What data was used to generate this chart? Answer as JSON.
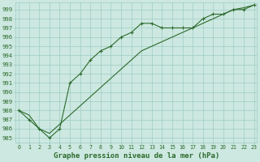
{
  "line1_x": [
    0,
    1,
    2,
    3,
    4,
    5,
    6,
    7,
    8,
    9,
    10,
    11,
    12,
    13,
    14,
    15,
    16,
    17,
    18,
    19,
    20,
    21,
    22,
    23
  ],
  "line1_y": [
    988.0,
    987.0,
    986.0,
    985.0,
    986.0,
    991.0,
    992.0,
    993.5,
    994.5,
    995.0,
    996.0,
    996.5,
    997.5,
    997.5,
    997.0,
    997.0,
    997.0,
    997.0,
    998.0,
    998.5,
    998.5,
    999.0,
    999.0,
    999.5
  ],
  "line2_x": [
    0,
    1,
    2,
    3,
    4,
    5,
    6,
    7,
    8,
    9,
    10,
    11,
    12,
    13,
    14,
    15,
    16,
    17,
    18,
    19,
    20,
    21,
    22,
    23
  ],
  "line2_y": [
    988.0,
    987.5,
    986.0,
    985.5,
    986.5,
    987.5,
    988.5,
    989.5,
    990.5,
    991.5,
    992.5,
    993.5,
    994.5,
    995.0,
    995.5,
    996.0,
    996.5,
    997.0,
    997.5,
    998.0,
    998.5,
    999.0,
    999.2,
    999.5
  ],
  "line_color": "#2d6a2d",
  "bg_color": "#cce8e0",
  "grid_color": "#9eccc4",
  "title": "Graphe pression niveau de la mer (hPa)",
  "ylabel_ticks": [
    985,
    986,
    987,
    988,
    989,
    990,
    991,
    992,
    993,
    994,
    995,
    996,
    997,
    998,
    999
  ],
  "xlabel_ticks": [
    0,
    1,
    2,
    3,
    4,
    5,
    6,
    7,
    8,
    9,
    10,
    11,
    12,
    13,
    14,
    15,
    16,
    17,
    18,
    19,
    20,
    21,
    22,
    23
  ],
  "ylim": [
    984.5,
    999.8
  ],
  "xlim": [
    -0.3,
    23.3
  ]
}
